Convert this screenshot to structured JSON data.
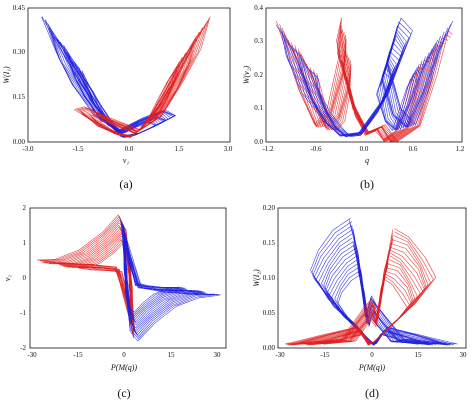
{
  "colors": {
    "series_a": "#2020e0",
    "series_b": "#e02020",
    "axis": "#111111"
  },
  "chart_data": [
    {
      "type": "line",
      "panel": "a",
      "caption": "(a)",
      "xlabel": "v₁",
      "ylabel": "W(I₁)",
      "xlim": [
        -3.0,
        3.0
      ],
      "ylim": [
        0.0,
        0.45
      ],
      "xticks": [
        "-3.0",
        "-1.5",
        "0.0",
        "1.5",
        "3.0"
      ],
      "yticks": [
        "0.00",
        "0.15",
        "0.30",
        "0.45"
      ],
      "grid": false,
      "series": [
        {
          "color": "blue",
          "points": [
            [
              -2.6,
              0.42
            ],
            [
              -2.2,
              0.35
            ],
            [
              -1.7,
              0.25
            ],
            [
              -1.2,
              0.15
            ],
            [
              -0.7,
              0.07
            ],
            [
              -0.2,
              0.02
            ],
            [
              0.3,
              0.03
            ],
            [
              0.9,
              0.06
            ],
            [
              1.4,
              0.09
            ],
            [
              1.1,
              0.11
            ],
            [
              0.4,
              0.08
            ],
            [
              -0.3,
              0.04
            ],
            [
              -1.0,
              0.09
            ],
            [
              -1.7,
              0.2
            ],
            [
              -2.2,
              0.3
            ],
            [
              -2.6,
              0.42
            ]
          ]
        },
        {
          "color": "red",
          "points": [
            [
              2.4,
              0.42
            ],
            [
              2.0,
              0.34
            ],
            [
              1.6,
              0.25
            ],
            [
              1.1,
              0.15
            ],
            [
              0.6,
              0.07
            ],
            [
              0.1,
              0.02
            ],
            [
              -0.4,
              0.03
            ],
            [
              -1.0,
              0.06
            ],
            [
              -1.6,
              0.11
            ],
            [
              -1.3,
              0.12
            ],
            [
              -0.6,
              0.08
            ],
            [
              0.3,
              0.04
            ],
            [
              1.0,
              0.09
            ],
            [
              1.6,
              0.2
            ],
            [
              2.1,
              0.31
            ],
            [
              2.4,
              0.42
            ]
          ]
        }
      ]
    },
    {
      "type": "line",
      "panel": "b",
      "caption": "(b)",
      "xlabel": "q",
      "ylabel": "W(v₂)",
      "xlim": [
        -1.2,
        1.2
      ],
      "ylim": [
        0.0,
        0.4
      ],
      "xticks": [
        "-1.2",
        "-0.6",
        "0.0",
        "0.6",
        "1.2"
      ],
      "yticks": [
        "0.0",
        "0.1",
        "0.2",
        "0.3",
        "0.4"
      ],
      "grid": false,
      "series": [
        {
          "color": "red",
          "points": [
            [
              -1.08,
              0.36
            ],
            [
              -0.95,
              0.28
            ],
            [
              -0.8,
              0.16
            ],
            [
              -0.62,
              0.05
            ],
            [
              -0.45,
              0.1
            ],
            [
              -0.3,
              0.25
            ],
            [
              -0.28,
              0.37
            ],
            [
              -0.35,
              0.3
            ],
            [
              -0.15,
              0.12
            ],
            [
              0.05,
              0.03
            ],
            [
              0.25,
              0.05
            ],
            [
              0.4,
              0.0
            ],
            [
              0.7,
              0.05
            ],
            [
              0.9,
              0.2
            ],
            [
              1.02,
              0.33
            ],
            [
              1.08,
              0.32
            ]
          ]
        },
        {
          "color": "blue",
          "points": [
            [
              1.08,
              0.36
            ],
            [
              0.95,
              0.28
            ],
            [
              0.8,
              0.16
            ],
            [
              0.62,
              0.05
            ],
            [
              0.45,
              0.1
            ],
            [
              0.3,
              0.25
            ],
            [
              0.45,
              0.37
            ],
            [
              0.58,
              0.33
            ],
            [
              0.3,
              0.15
            ],
            [
              -0.05,
              0.03
            ],
            [
              -0.3,
              0.02
            ],
            [
              -0.5,
              0.06
            ],
            [
              -0.75,
              0.15
            ],
            [
              -0.95,
              0.26
            ],
            [
              -1.02,
              0.32
            ],
            [
              -1.08,
              0.35
            ]
          ]
        }
      ]
    },
    {
      "type": "line",
      "panel": "c",
      "caption": "(c)",
      "xlabel": "P(M(q))",
      "ylabel": "v₁",
      "xlim": [
        -30,
        30
      ],
      "ylim": [
        -2,
        2
      ],
      "xticks": [
        "-30",
        "-15",
        "0",
        "15",
        "30"
      ],
      "yticks": [
        "-2",
        "-1",
        "0",
        "1",
        "2"
      ],
      "grid": false,
      "series": [
        {
          "color": "red",
          "points": [
            [
              -28,
              0.5
            ],
            [
              -22,
              0.55
            ],
            [
              -15,
              0.8
            ],
            [
              -8,
              1.3
            ],
            [
              -3,
              1.8
            ],
            [
              -1,
              1.5
            ],
            [
              0.5,
              0.4
            ],
            [
              1,
              -0.3
            ],
            [
              1.5,
              -1.2
            ],
            [
              2,
              -1.7
            ],
            [
              -1,
              -0.6
            ],
            [
              -4,
              0.3
            ],
            [
              -12,
              0.4
            ],
            [
              -20,
              0.45
            ],
            [
              -28,
              0.5
            ]
          ]
        },
        {
          "color": "blue",
          "points": [
            [
              28,
              -0.5
            ],
            [
              22,
              -0.55
            ],
            [
              15,
              -0.8
            ],
            [
              8,
              -1.3
            ],
            [
              3,
              -1.8
            ],
            [
              1,
              -1.5
            ],
            [
              -0.5,
              -0.4
            ],
            [
              -1,
              0.3
            ],
            [
              -1.5,
              1.2
            ],
            [
              -2,
              1.7
            ],
            [
              1,
              0.6
            ],
            [
              4,
              -0.3
            ],
            [
              12,
              -0.4
            ],
            [
              20,
              -0.45
            ],
            [
              28,
              -0.5
            ]
          ]
        }
      ]
    },
    {
      "type": "line",
      "panel": "d",
      "caption": "(d)",
      "xlabel": "P(M(q))",
      "ylabel": "W(I₂)",
      "xlim": [
        -30,
        30
      ],
      "ylim": [
        0.0,
        0.2
      ],
      "xticks": [
        "-30",
        "-15",
        "0",
        "15",
        "30"
      ],
      "yticks": [
        "0.00",
        "0.05",
        "0.10",
        "0.15",
        "0.20"
      ],
      "grid": false,
      "series": [
        {
          "color": "blue",
          "points": [
            [
              -7,
              0.185
            ],
            [
              -12,
              0.17
            ],
            [
              -17,
              0.14
            ],
            [
              -20,
              0.11
            ],
            [
              -14,
              0.07
            ],
            [
              -6,
              0.035
            ],
            [
              -1,
              0.01
            ],
            [
              1,
              0.005
            ],
            [
              5,
              0.03
            ],
            [
              15,
              0.02
            ],
            [
              27,
              0.005
            ],
            [
              10,
              0.012
            ],
            [
              2,
              0.06
            ],
            [
              0,
              0.075
            ],
            [
              -2,
              0.05
            ],
            [
              -5,
              0.14
            ],
            [
              -7,
              0.185
            ]
          ]
        },
        {
          "color": "red",
          "points": [
            [
              7,
              0.17
            ],
            [
              12,
              0.16
            ],
            [
              17,
              0.13
            ],
            [
              20,
              0.1
            ],
            [
              14,
              0.065
            ],
            [
              6,
              0.032
            ],
            [
              1,
              0.01
            ],
            [
              -1,
              0.005
            ],
            [
              -5,
              0.03
            ],
            [
              -15,
              0.02
            ],
            [
              -28,
              0.005
            ],
            [
              -10,
              0.012
            ],
            [
              -2,
              0.06
            ],
            [
              0,
              0.07
            ],
            [
              2,
              0.05
            ],
            [
              5,
              0.13
            ],
            [
              7,
              0.17
            ]
          ]
        }
      ]
    }
  ]
}
